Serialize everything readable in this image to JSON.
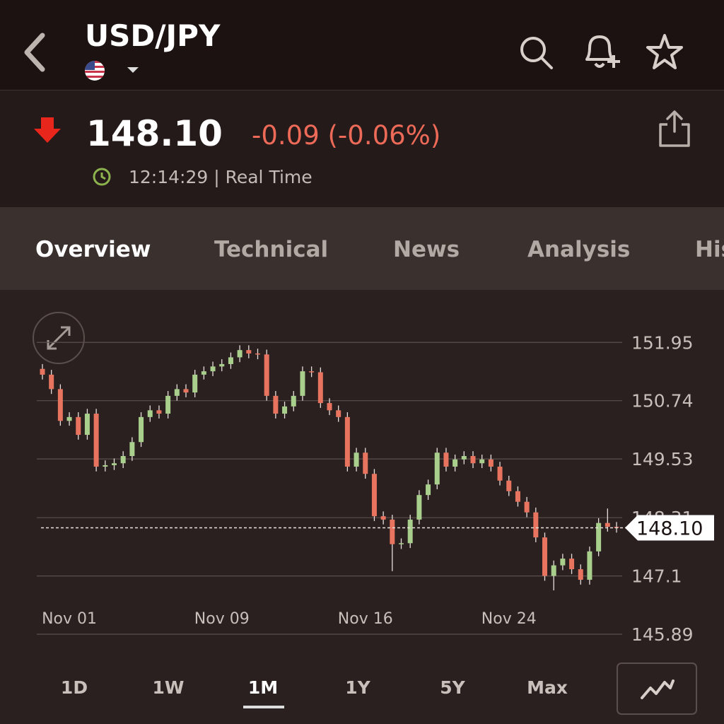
{
  "header": {
    "title": "USD/JPY"
  },
  "quote": {
    "price": "148.10",
    "change": "-0.09 (-0.06%)",
    "time": "12:14:29 | Real Time"
  },
  "tabs": [
    "Overview",
    "Technical",
    "News",
    "Analysis",
    "Historical Data"
  ],
  "ranges": [
    "1D",
    "1W",
    "1M",
    "1Y",
    "5Y",
    "Max"
  ],
  "chart_data": {
    "type": "candlestick",
    "categories": [
      null,
      null,
      null,
      "Nov 01",
      null,
      null,
      null,
      null,
      null,
      null,
      null,
      null,
      null,
      null,
      null,
      null,
      null,
      null,
      null,
      null,
      "Nov 09",
      null,
      null,
      null,
      null,
      null,
      null,
      null,
      null,
      null,
      null,
      null,
      null,
      null,
      null,
      null,
      "Nov 16",
      null,
      null,
      null,
      null,
      null,
      null,
      null,
      null,
      null,
      null,
      null,
      null,
      null,
      null,
      null,
      "Nov 24",
      null,
      null,
      null,
      null,
      null,
      null,
      null,
      null,
      null,
      null,
      null,
      null
    ],
    "open": [
      151.4,
      151.28,
      150.98,
      150.32,
      150.4,
      150.03,
      150.47,
      149.37,
      149.4,
      149.44,
      149.59,
      149.88,
      150.4,
      150.54,
      150.47,
      150.84,
      150.98,
      150.91,
      151.28,
      151.35,
      151.45,
      151.5,
      151.64,
      151.79,
      151.72,
      151.7,
      150.84,
      150.47,
      150.62,
      150.84,
      151.35,
      151.33,
      150.69,
      150.54,
      150.4,
      149.37,
      149.66,
      149.22,
      148.34,
      148.27,
      147.76,
      147.78,
      148.27,
      148.78,
      149.0,
      149.66,
      149.37,
      149.52,
      149.59,
      149.44,
      149.52,
      149.37,
      149.08,
      148.86,
      148.64,
      148.42,
      147.9,
      147.1,
      147.32,
      147.46,
      147.24,
      147.02,
      147.61,
      148.2,
      148.12
    ],
    "high": [
      151.5,
      151.38,
      151.08,
      150.5,
      150.5,
      150.57,
      150.57,
      149.5,
      149.54,
      149.69,
      149.98,
      150.5,
      150.64,
      150.64,
      150.94,
      151.08,
      151.08,
      151.38,
      151.45,
      151.55,
      151.6,
      151.74,
      151.89,
      151.89,
      151.82,
      151.8,
      150.94,
      150.72,
      150.94,
      151.45,
      151.45,
      151.43,
      150.79,
      150.64,
      150.5,
      149.76,
      149.76,
      149.32,
      148.44,
      148.37,
      147.88,
      148.37,
      148.88,
      149.1,
      149.76,
      149.76,
      149.62,
      149.69,
      149.69,
      149.62,
      149.62,
      149.47,
      149.18,
      148.96,
      148.74,
      148.52,
      148.0,
      147.42,
      147.56,
      147.56,
      147.34,
      147.71,
      148.3,
      148.5,
      148.22
    ],
    "low": [
      151.18,
      150.88,
      150.22,
      150.22,
      149.93,
      149.93,
      149.27,
      149.27,
      149.3,
      149.34,
      149.49,
      149.78,
      150.3,
      150.37,
      150.37,
      150.74,
      150.81,
      150.81,
      151.18,
      151.25,
      151.35,
      151.4,
      151.54,
      151.62,
      151.6,
      150.74,
      150.37,
      150.37,
      150.52,
      150.74,
      151.23,
      150.59,
      150.44,
      150.3,
      149.27,
      149.27,
      149.12,
      148.24,
      148.17,
      147.2,
      147.66,
      147.68,
      148.17,
      148.68,
      148.9,
      149.27,
      149.27,
      149.42,
      149.34,
      149.34,
      149.27,
      148.98,
      148.76,
      148.54,
      148.32,
      147.8,
      147.0,
      146.8,
      147.22,
      147.14,
      146.92,
      146.92,
      147.51,
      148.02,
      148.0
    ],
    "close": [
      151.28,
      150.98,
      150.32,
      150.4,
      150.03,
      150.47,
      149.37,
      149.4,
      149.44,
      149.59,
      149.88,
      150.4,
      150.54,
      150.47,
      150.84,
      150.98,
      150.91,
      151.28,
      151.35,
      151.45,
      151.5,
      151.64,
      151.79,
      151.72,
      151.7,
      150.84,
      150.47,
      150.62,
      150.84,
      151.35,
      151.33,
      150.69,
      150.54,
      150.4,
      149.37,
      149.66,
      149.22,
      148.34,
      148.27,
      147.76,
      147.78,
      148.27,
      148.78,
      149.0,
      149.66,
      149.37,
      149.52,
      149.59,
      149.44,
      149.52,
      149.37,
      149.08,
      148.86,
      148.64,
      148.42,
      147.9,
      147.1,
      147.32,
      147.46,
      147.24,
      147.02,
      147.61,
      148.2,
      148.12,
      148.1
    ],
    "up_color": "#a9cf8c",
    "down_color": "#e8735f",
    "ylim": [
      145.89,
      152.6
    ],
    "yticks": [
      151.95,
      150.74,
      149.53,
      148.31,
      147.1,
      145.89
    ],
    "grid": true,
    "last": {
      "value": 148.1,
      "label": "148.10"
    }
  }
}
